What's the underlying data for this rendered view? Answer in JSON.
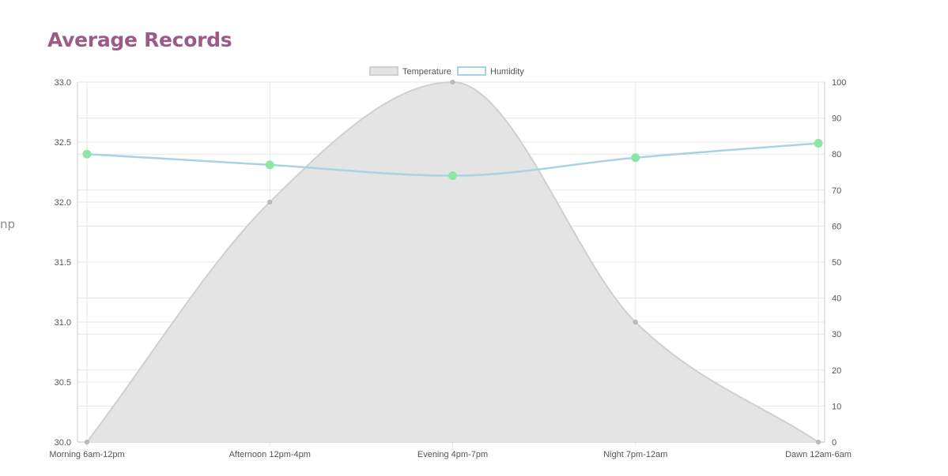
{
  "page": {
    "title": "Average Records",
    "side_fragment": "np"
  },
  "colors": {
    "title": "#9c5b86",
    "temperature_fill": "#e3e3e3",
    "temperature_line": "#cfcfcf",
    "humidity_line": "#a8d4e2",
    "humidity_point": "#8ee6a6",
    "grid": "#e6e6e6"
  },
  "chart_data": {
    "type": "line",
    "categories": [
      "Morning 6am-12pm",
      "Afternoon 12pm-4pm",
      "Evening 4pm-7pm",
      "Night 7pm-12am",
      "Dawn 12am-6am"
    ],
    "series": [
      {
        "name": "Temperature",
        "style": "area",
        "axis": "left",
        "values": [
          30.0,
          32.0,
          33.0,
          31.0,
          30.0
        ]
      },
      {
        "name": "Humidity",
        "style": "line",
        "axis": "right",
        "values": [
          80,
          77,
          74,
          79,
          83
        ]
      }
    ],
    "y_left": {
      "min": 30.0,
      "max": 33.0,
      "ticks": [
        "33.0",
        "32.5",
        "32.0",
        "31.5",
        "31.0",
        "30.5",
        "30.0"
      ]
    },
    "y_right": {
      "min": 0,
      "max": 100,
      "ticks": [
        "100",
        "90",
        "80",
        "70",
        "60",
        "50",
        "40",
        "30",
        "20",
        "10",
        "0"
      ]
    },
    "legend_position": "top-center",
    "grid": true
  }
}
